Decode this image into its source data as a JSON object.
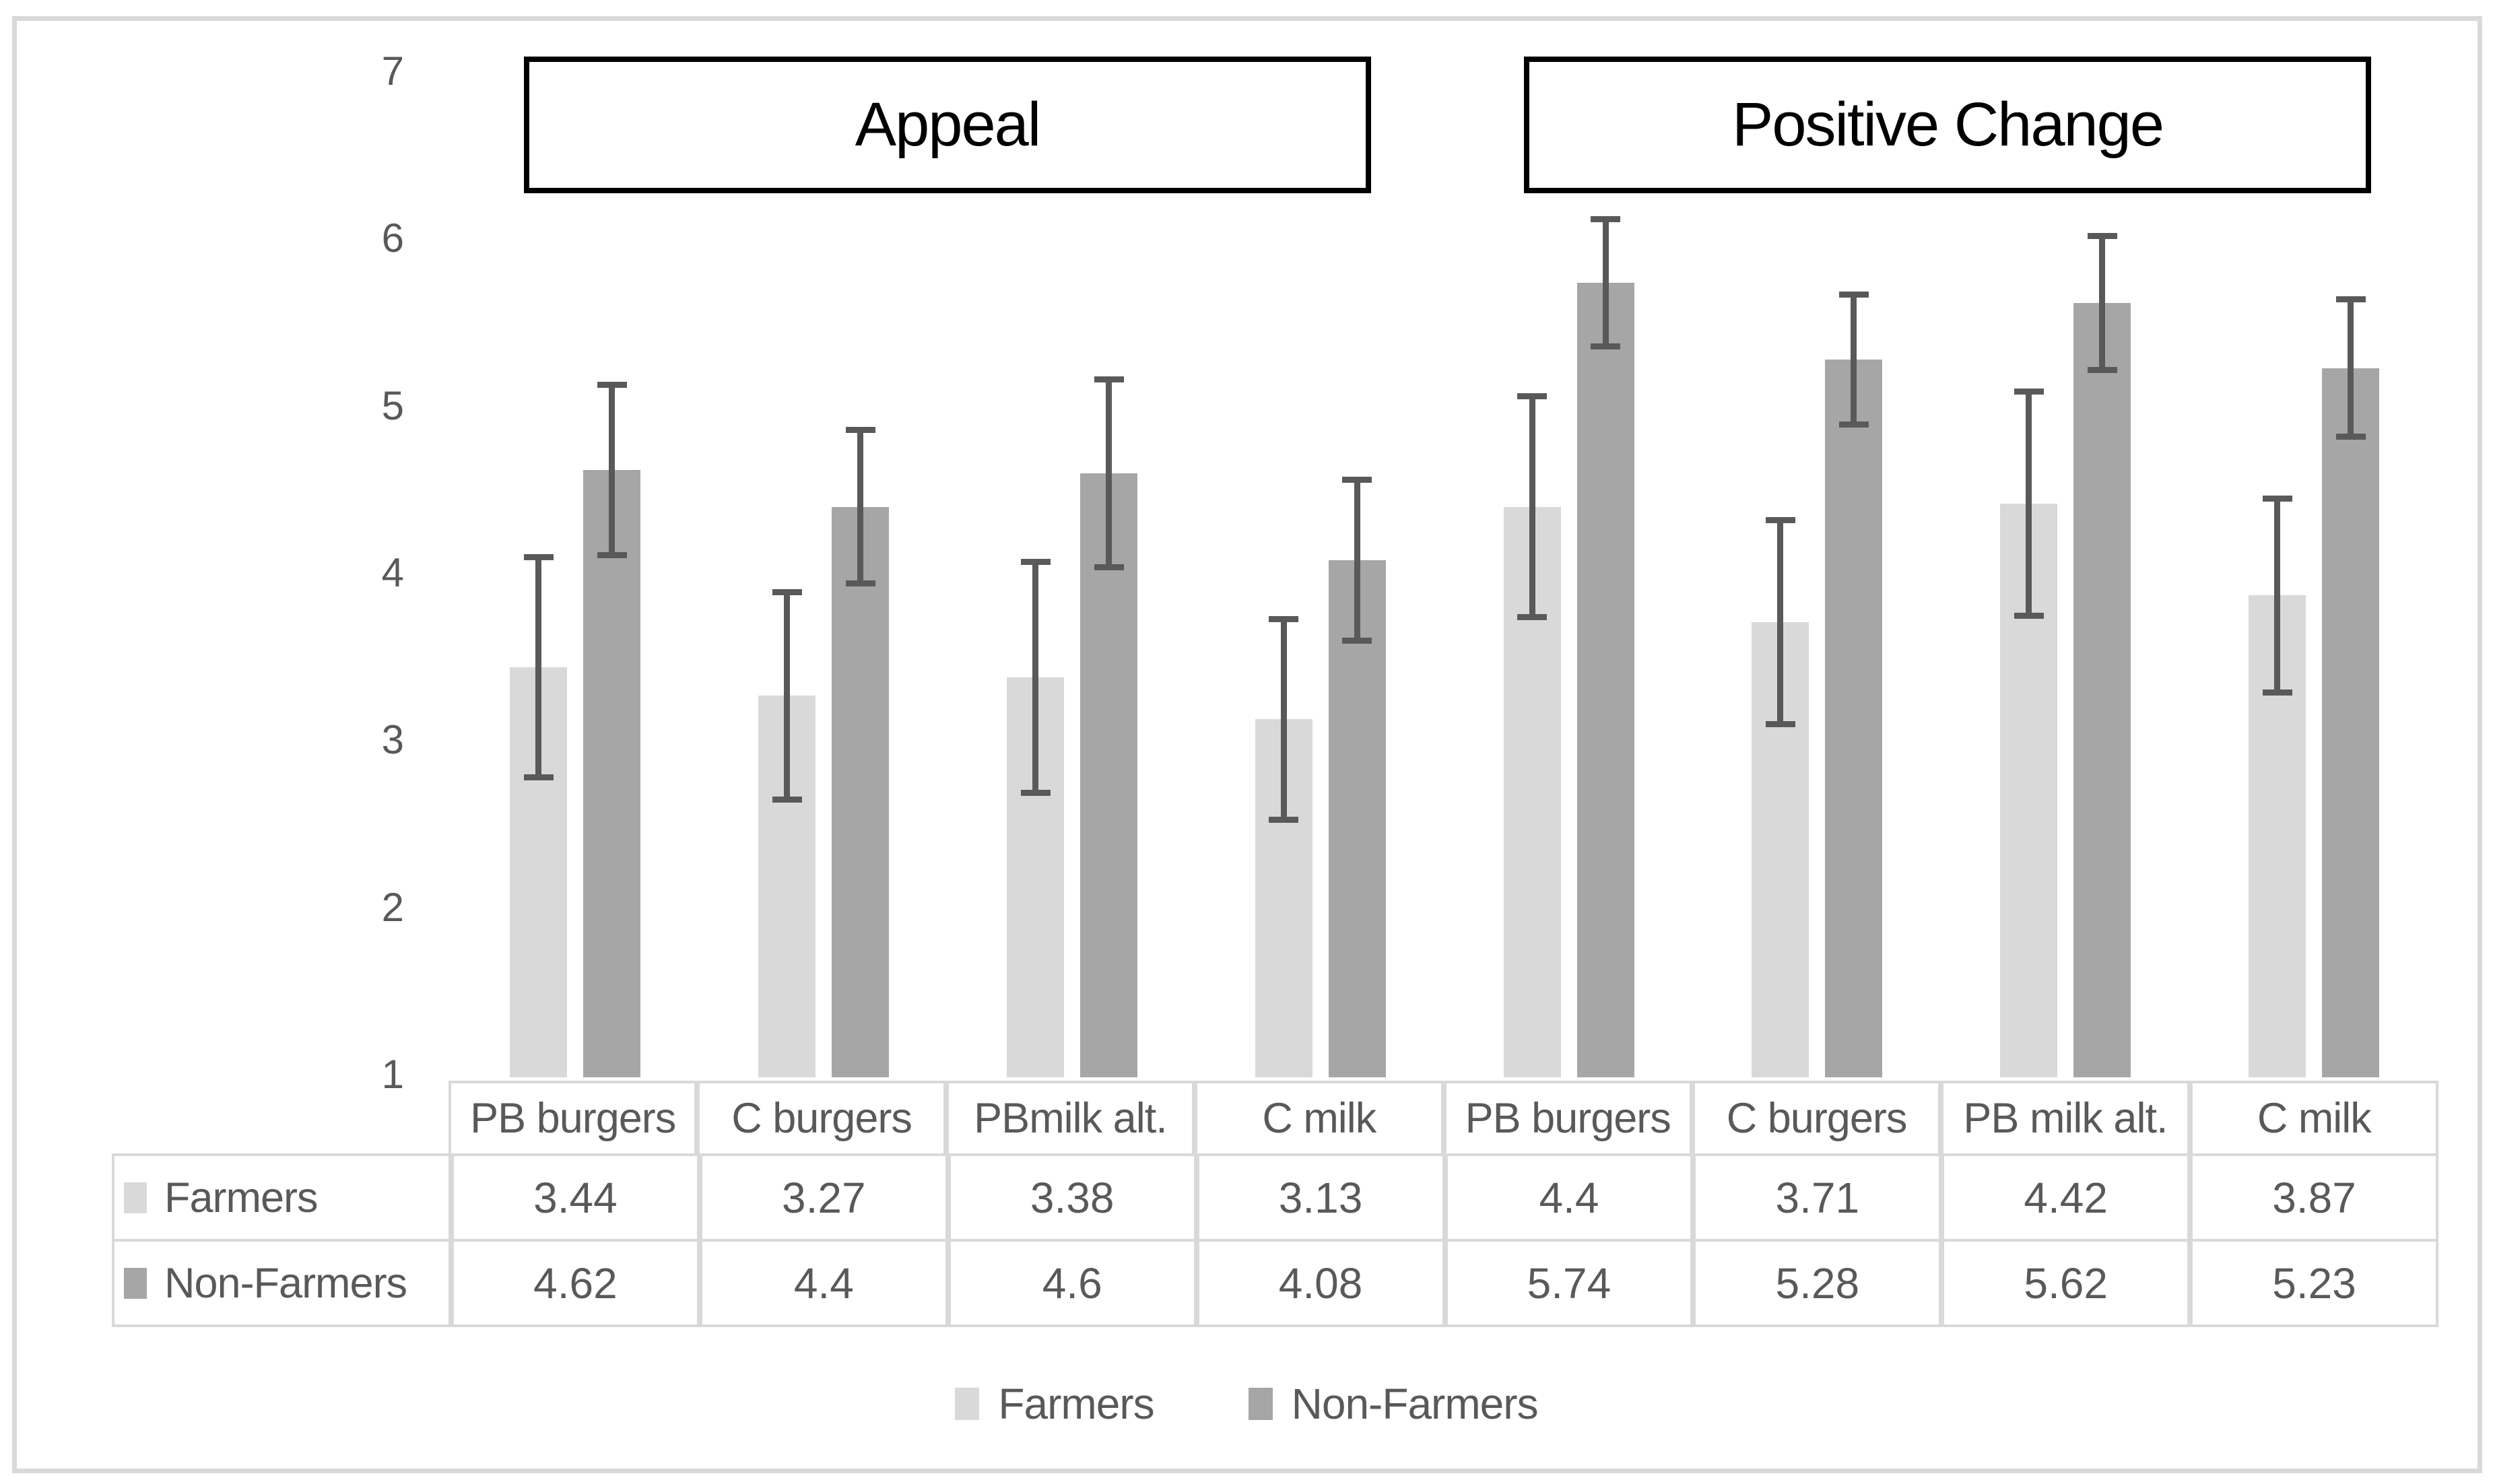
{
  "chart_data": {
    "type": "bar",
    "title_boxes": [
      "Appeal",
      "Positive Change"
    ],
    "ylabel": "",
    "xlabel": "",
    "ylim": [
      1,
      7
    ],
    "y_ticks": [
      7,
      6,
      5,
      4,
      3,
      2,
      1
    ],
    "grid": "off",
    "legend_position": "bottom",
    "categories": [
      "PB burgers",
      "C burgers",
      "PBmilk alt.",
      "C milk",
      "PB burgers",
      "C burgers",
      "PB milk alt.",
      "C milk"
    ],
    "group_of_category": [
      "Appeal",
      "Appeal",
      "Appeal",
      "Appeal",
      "Positive Change",
      "Positive Change",
      "Positive Change",
      "Positive Change"
    ],
    "series": [
      {
        "name": "Farmers",
        "color": "#d9d9d9",
        "values": [
          3.44,
          3.27,
          3.38,
          3.13,
          4.4,
          3.71,
          4.42,
          3.87
        ],
        "errors": [
          0.66,
          0.62,
          0.69,
          0.6,
          0.66,
          0.61,
          0.67,
          0.58
        ]
      },
      {
        "name": "Non-Farmers",
        "color": "#a6a6a6",
        "values": [
          4.62,
          4.4,
          4.6,
          4.08,
          5.74,
          5.28,
          5.62,
          5.23
        ],
        "errors": [
          0.51,
          0.46,
          0.56,
          0.48,
          0.38,
          0.39,
          0.4,
          0.41
        ]
      }
    ],
    "error_bar_color": "#595959"
  },
  "table": {
    "column_headers": [
      "PB burgers",
      "C burgers",
      "PBmilk alt.",
      "C milk",
      "PB burgers",
      "C burgers",
      "PB milk alt.",
      "C milk"
    ],
    "rows": [
      {
        "label": "Farmers",
        "swatch_color": "#d9d9d9",
        "values": [
          "3.44",
          "3.27",
          "3.38",
          "3.13",
          "4.4",
          "3.71",
          "4.42",
          "3.87"
        ]
      },
      {
        "label": "Non-Farmers",
        "swatch_color": "#a6a6a6",
        "values": [
          "4.62",
          "4.4",
          "4.6",
          "4.08",
          "5.74",
          "5.28",
          "5.62",
          "5.23"
        ]
      }
    ]
  },
  "legend": {
    "items": [
      {
        "label": "Farmers",
        "color": "#d9d9d9"
      },
      {
        "label": "Non-Farmers",
        "color": "#a6a6a6"
      }
    ]
  },
  "colors": {
    "farmers_bar": "#d9d9d9",
    "non_farmers_bar": "#a6a6a6",
    "error_bar": "#595959",
    "text": "#595959",
    "table_border": "#d9d9d9",
    "outer_border": "#d9d9d9",
    "title_text": "#000000",
    "title_border": "#000000",
    "background": "#ffffff"
  }
}
